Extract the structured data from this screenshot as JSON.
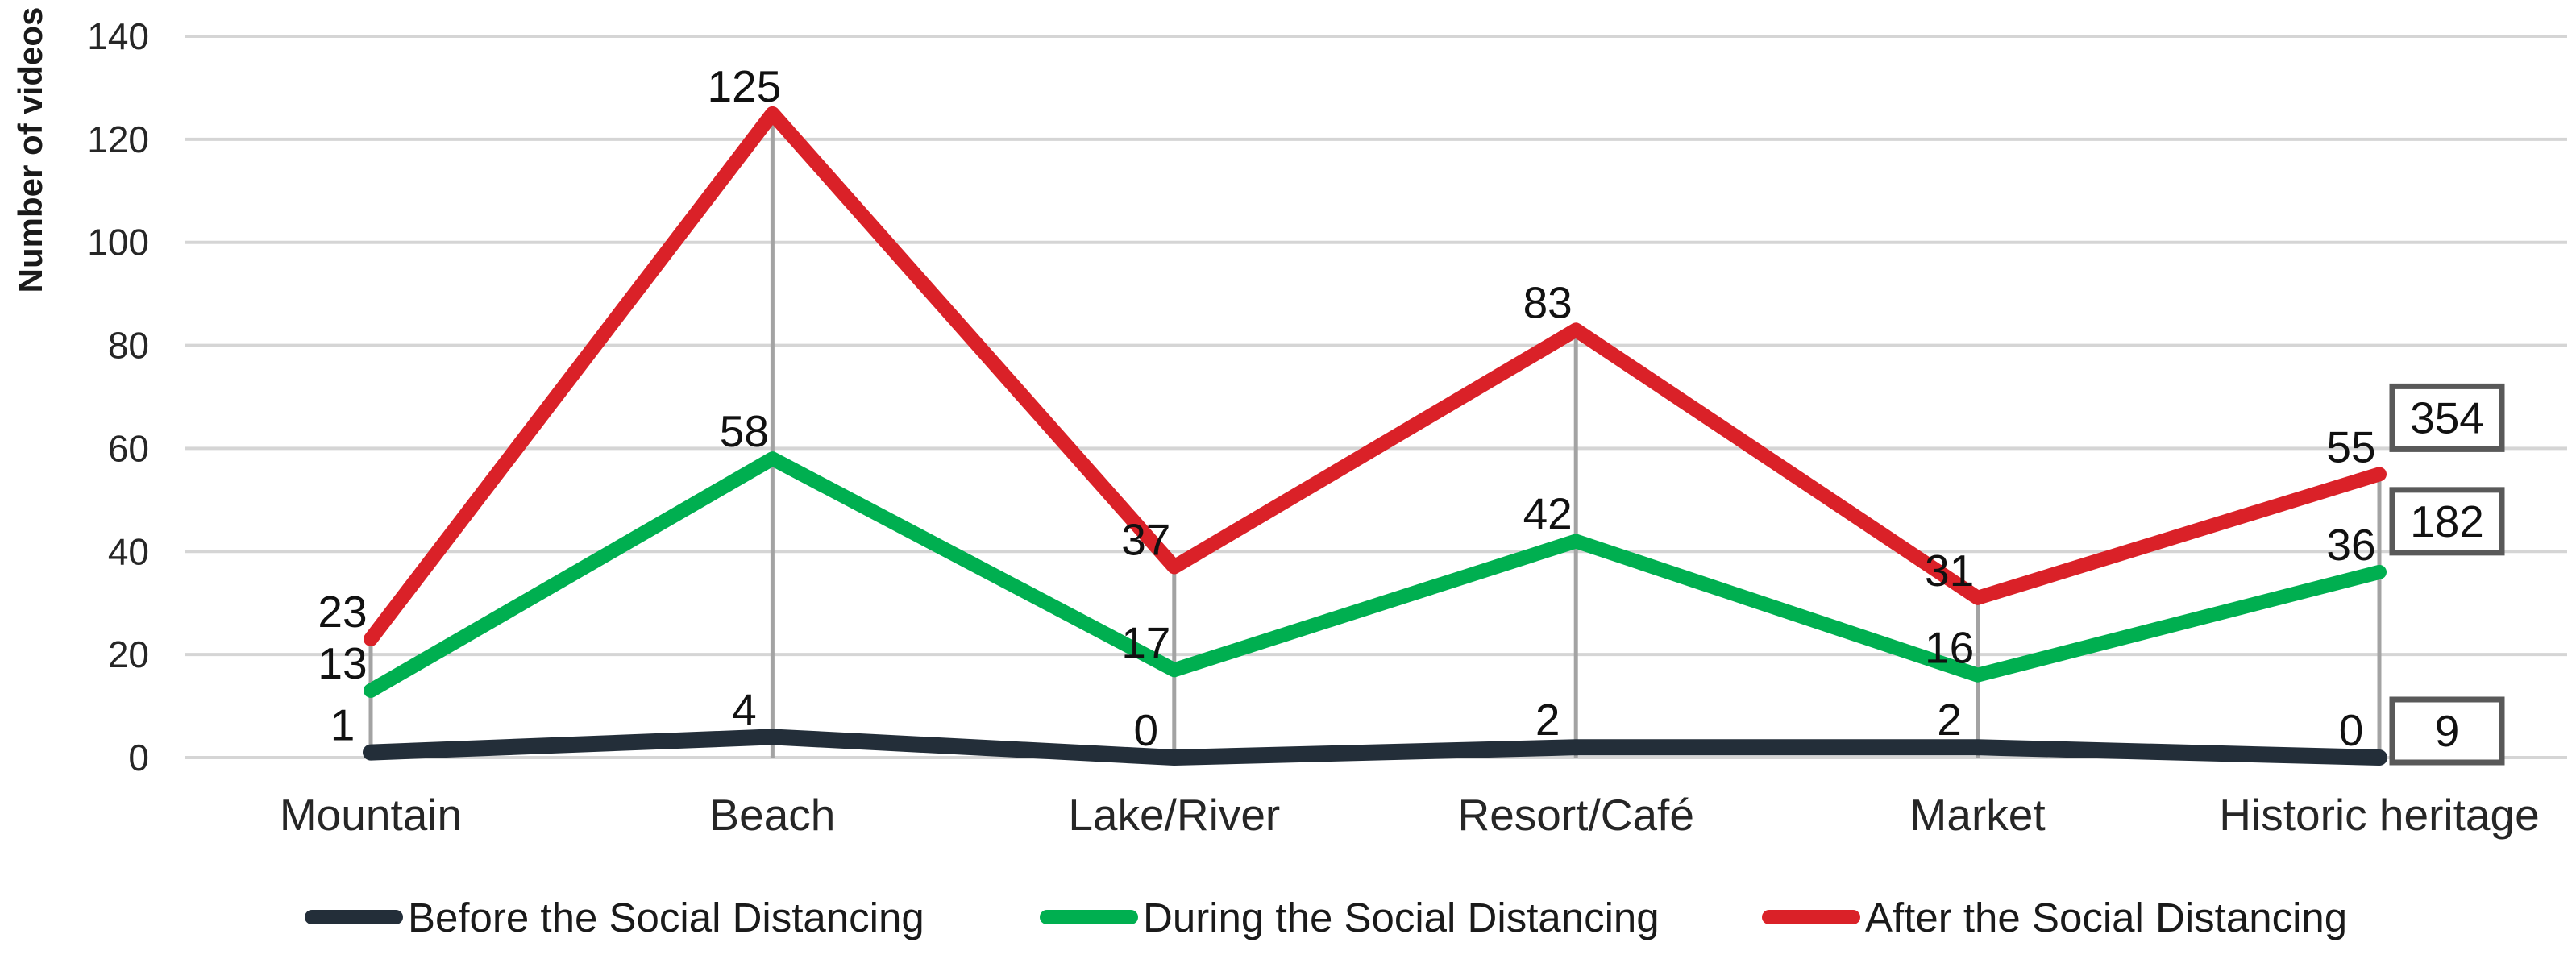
{
  "chart_data": {
    "type": "line",
    "title": "",
    "ylabel": "Number of videos",
    "xlabel": "",
    "categories": [
      "Mountain",
      "Beach",
      "Lake/River",
      "Resort/Café",
      "Market",
      "Historic heritage"
    ],
    "series": [
      {
        "name": "Before the Social Distancing",
        "color": "#232E39",
        "values": [
          1,
          4,
          0,
          2,
          2,
          0
        ],
        "total": 9
      },
      {
        "name": "During the Social Distancing",
        "color": "#00AF50",
        "values": [
          13,
          58,
          17,
          42,
          16,
          36
        ],
        "total": 182
      },
      {
        "name": "After the Social Distancing",
        "color": "#DA2128",
        "values": [
          23,
          125,
          37,
          83,
          31,
          55
        ],
        "total": 354
      }
    ],
    "y_ticks": [
      0,
      20,
      40,
      60,
      80,
      100,
      120,
      140
    ],
    "ylim": [
      0,
      140
    ],
    "grid": "horizontal",
    "drop_lines": true,
    "legend_position": "bottom",
    "totals_boxed": [
      354,
      182,
      9
    ]
  },
  "colors": {
    "gridline": "#D5D5D5",
    "drop_line": "#A3A3A3",
    "box_border": "#595959",
    "tick_text": "#262626",
    "label_text": "#111111"
  }
}
